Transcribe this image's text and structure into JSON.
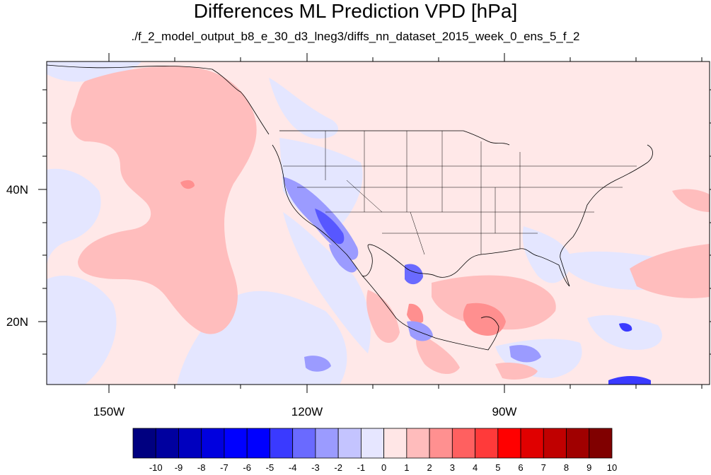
{
  "title": "Differences ML Prediction VPD [hPa]",
  "subtitle": "./f_2_model_output_b8_e_30_d3_lneg3/diffs_nn_dataset_2015_week_0_ens_5_f_2",
  "axes": {
    "lon_labels": [
      "150W",
      "120W",
      "90W"
    ],
    "lat_labels": [
      "40N",
      "20N"
    ]
  },
  "colorbar": {
    "labels": [
      "-10",
      "-9",
      "-8",
      "-7",
      "-6",
      "-5",
      "-4",
      "-3",
      "-2",
      "-1",
      "0",
      "1",
      "2",
      "3",
      "4",
      "5",
      "6",
      "7",
      "8",
      "9",
      "10"
    ],
    "colors": [
      "#000080",
      "#00009f",
      "#0000bf",
      "#0000df",
      "#0000ff",
      "#0000ff",
      "#3a3aff",
      "#6a6aff",
      "#9b9bff",
      "#c4c4ff",
      "#e6e6ff",
      "#ffe6e6",
      "#ffbcbc",
      "#ff9090",
      "#ff6060",
      "#ff3a3a",
      "#ff0000",
      "#e00000",
      "#c00000",
      "#a00000",
      "#800000"
    ]
  },
  "map": {
    "background_color": "#ffe8e8",
    "coastline_color": "#000000"
  }
}
